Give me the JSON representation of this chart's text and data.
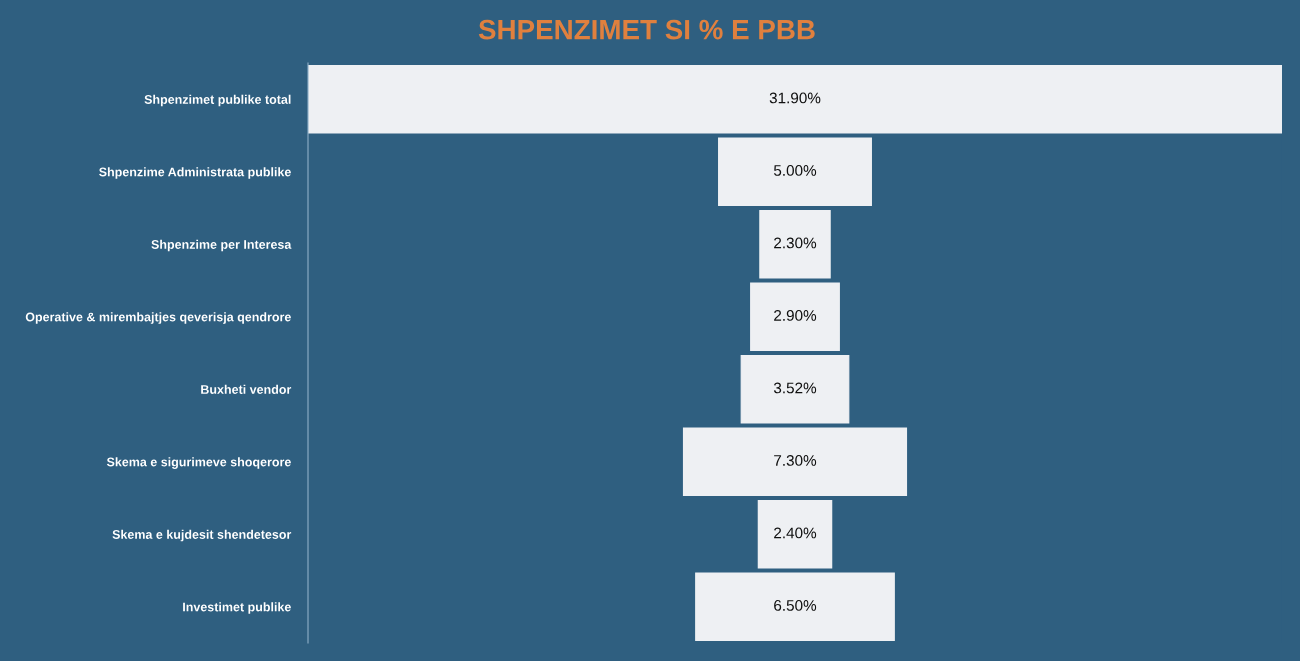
{
  "chart_data": {
    "type": "other",
    "title": "SHPENZIMET SI % E PBB",
    "categories": [
      "Shpenzimet publike total",
      "Shpenzime Administrata publike",
      "Shpenzime per Interesa",
      "Operative & mirembajtjes qeverisja qendrore",
      "Buxheti vendor",
      "Skema e sigurimeve shoqerore",
      "Skema e kujdesit shendetesor",
      "Investimet publike"
    ],
    "values": [
      31.9,
      5.0,
      2.3,
      2.9,
      3.52,
      7.3,
      2.4,
      6.5
    ],
    "value_labels": [
      "31.90%",
      "5.00%",
      "2.30%",
      "2.90%",
      "3.52%",
      "7.30%",
      "2.40%",
      "6.50%"
    ],
    "color": "#eef0f3"
  }
}
